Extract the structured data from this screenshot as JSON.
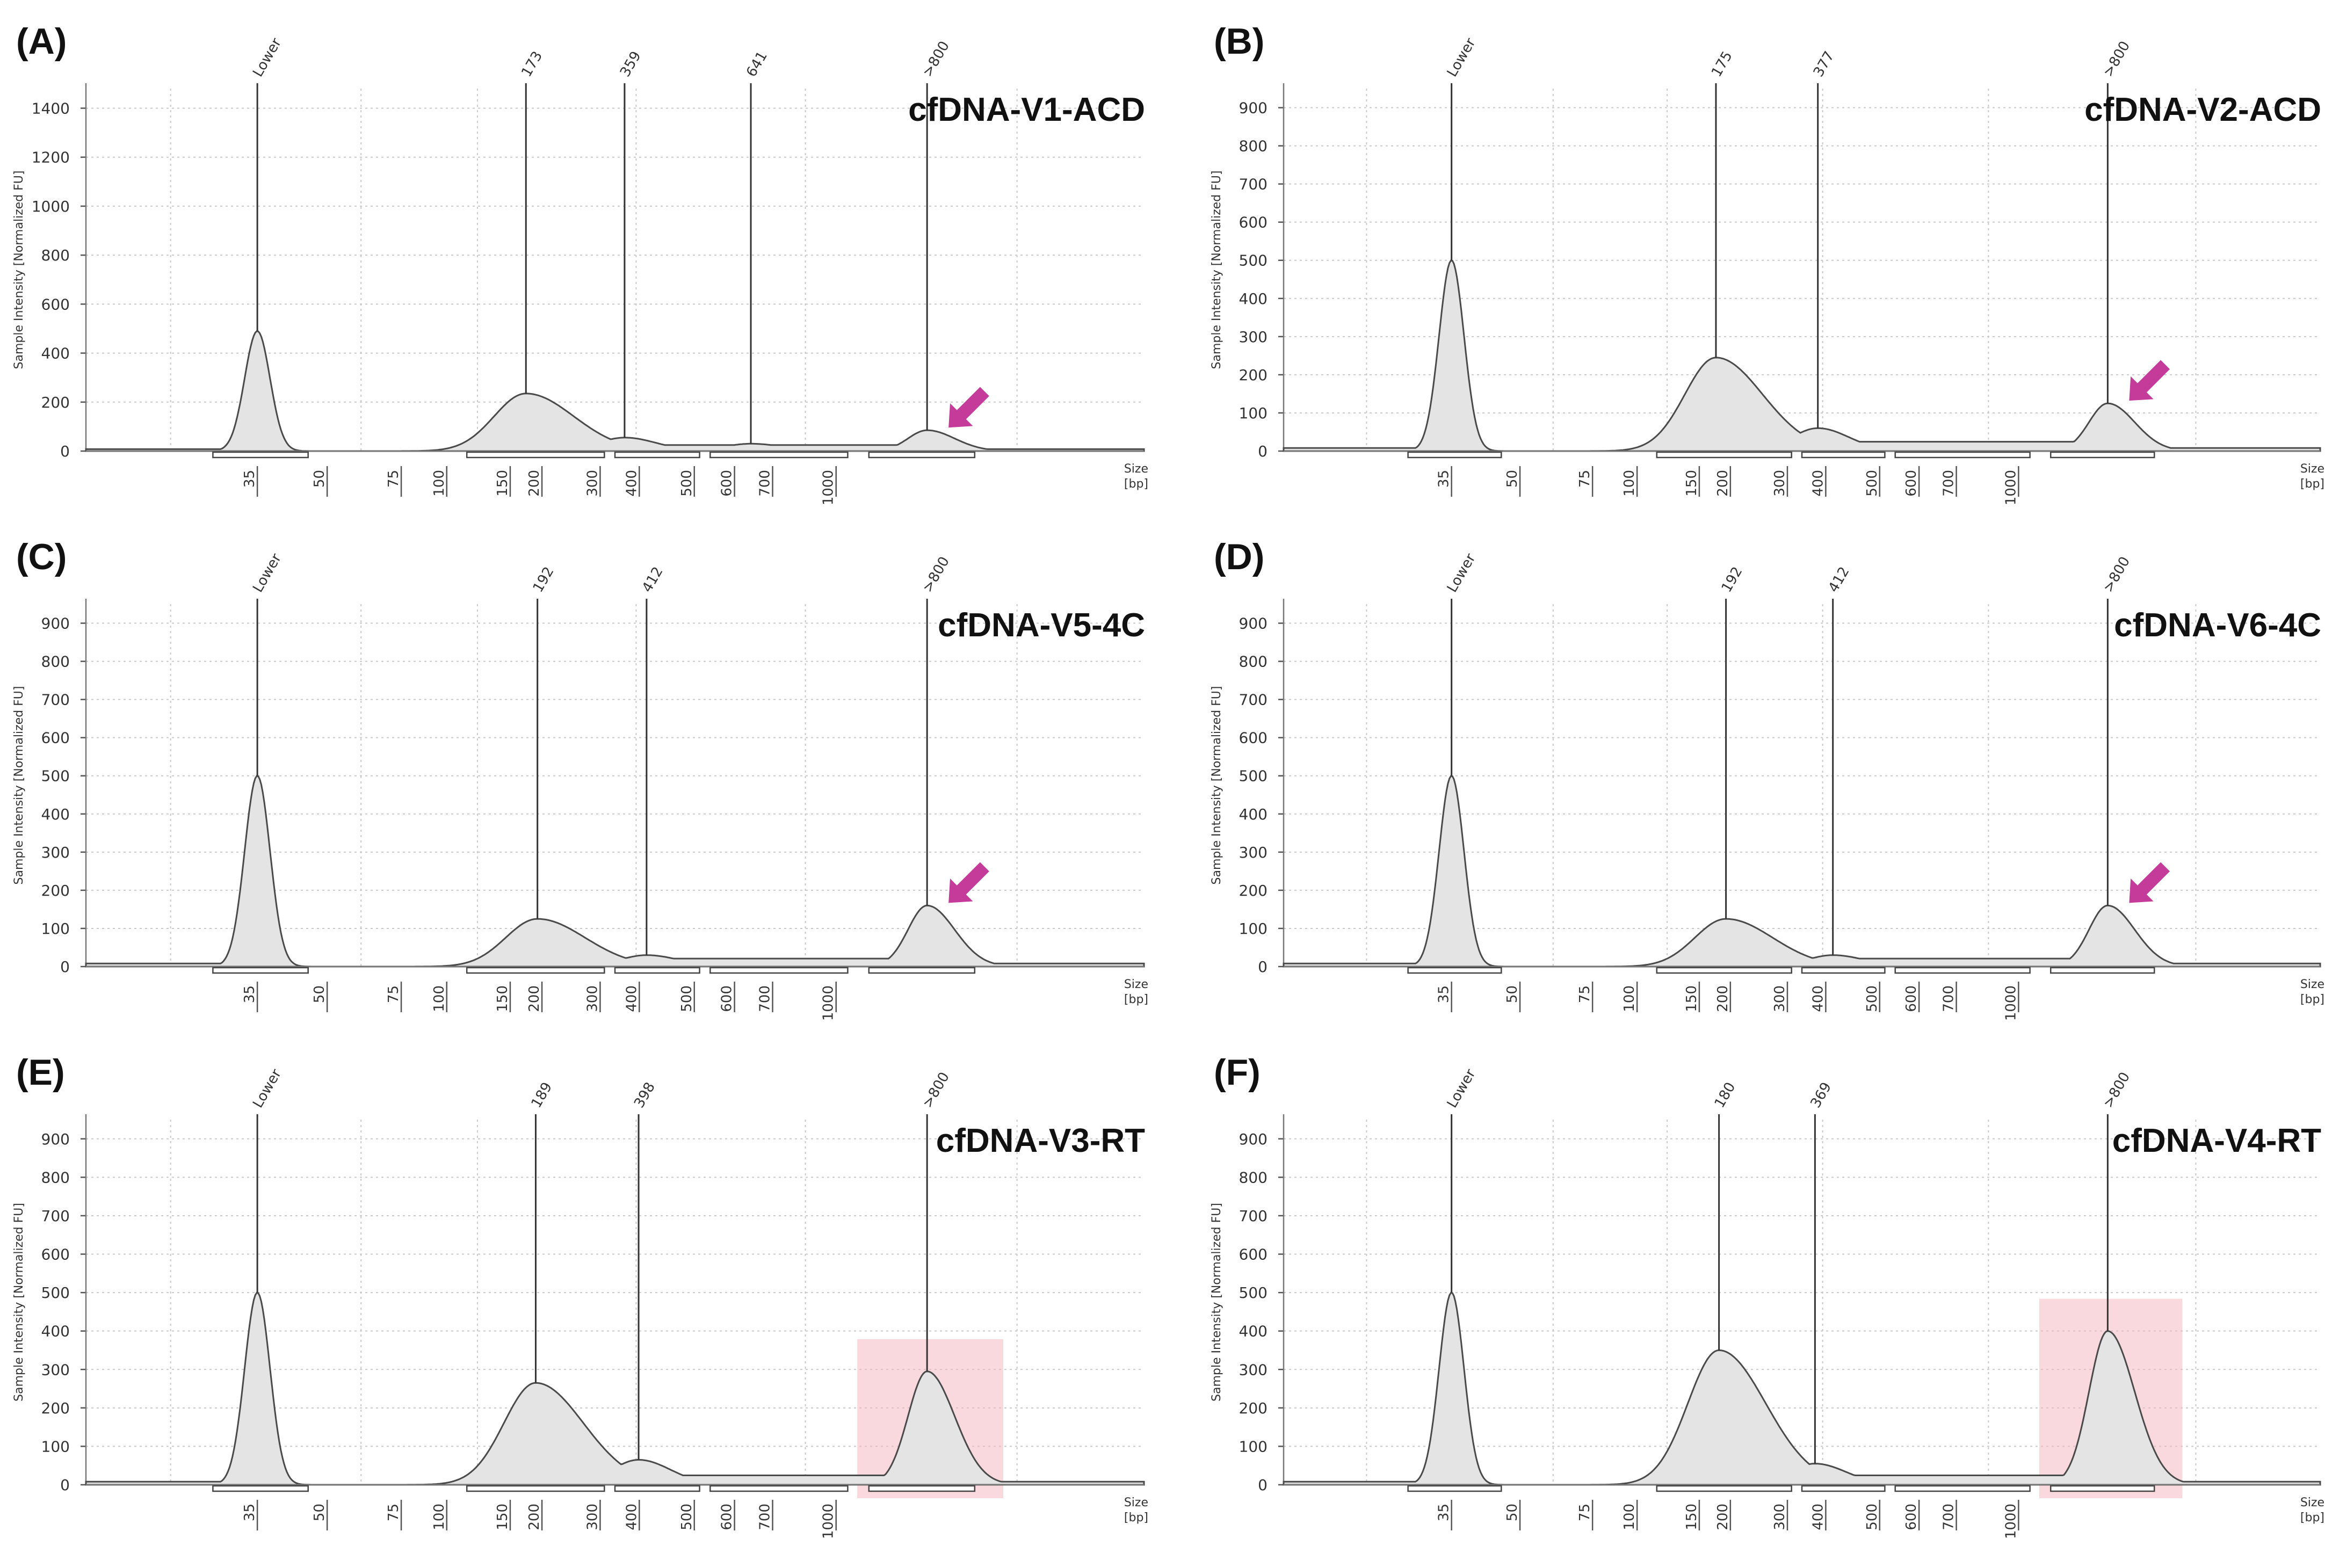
{
  "figure_label": "cfDNA electropherograms",
  "colors": {
    "trace_fill": "#e4e4e4",
    "trace_line": "#4a4a4a",
    "arrow": "#c43b9a",
    "highlight": "#f6b3bd"
  },
  "chart_data": [
    {
      "panel": "(A)",
      "title": "cfDNA-V1-ACD",
      "type": "area",
      "ylabel": "Sample Intensity [Normalized FU]",
      "xlabel": "Size\n[bp]",
      "ylim": [
        0,
        1480
      ],
      "yticks": [
        0,
        200,
        400,
        600,
        800,
        1000,
        1200,
        1400
      ],
      "xticks": [
        "35",
        "50",
        "75",
        "100",
        "150",
        "200",
        "300",
        "400",
        "500",
        "600",
        "700",
        "1000"
      ],
      "peaks": [
        {
          "label": "Lower",
          "size_bp": 35,
          "value": 490
        },
        {
          "label": "173",
          "size_bp": 173,
          "value": 235
        },
        {
          "label": "359",
          "size_bp": 359,
          "value": 55
        },
        {
          "label": "641",
          "size_bp": 641,
          "value": 30
        },
        {
          "label": ">800",
          "size_bp": 1500,
          "value": 85
        }
      ],
      "annotation": "arrow",
      "highlight": false
    },
    {
      "panel": "(B)",
      "title": "cfDNA-V2-ACD",
      "type": "area",
      "ylabel": "Sample Intensity [Normalized FU]",
      "xlabel": "Size\n[bp]",
      "ylim": [
        0,
        950
      ],
      "yticks": [
        0,
        100,
        200,
        300,
        400,
        500,
        600,
        700,
        800,
        900
      ],
      "xticks": [
        "35",
        "50",
        "75",
        "100",
        "150",
        "200",
        "300",
        "400",
        "500",
        "600",
        "700",
        "1000"
      ],
      "peaks": [
        {
          "label": "Lower",
          "size_bp": 35,
          "value": 500
        },
        {
          "label": "175",
          "size_bp": 175,
          "value": 245
        },
        {
          "label": "377",
          "size_bp": 377,
          "value": 60
        },
        {
          "label": ">800",
          "size_bp": 1500,
          "value": 125
        }
      ],
      "annotation": "arrow",
      "highlight": false
    },
    {
      "panel": "(C)",
      "title": "cfDNA-V5-4C",
      "type": "area",
      "ylabel": "Sample Intensity [Normalized FU]",
      "xlabel": "Size\n[bp]",
      "ylim": [
        0,
        950
      ],
      "yticks": [
        0,
        100,
        200,
        300,
        400,
        500,
        600,
        700,
        800,
        900
      ],
      "xticks": [
        "35",
        "50",
        "75",
        "100",
        "150",
        "200",
        "300",
        "400",
        "500",
        "600",
        "700",
        "1000"
      ],
      "peaks": [
        {
          "label": "Lower",
          "size_bp": 35,
          "value": 500
        },
        {
          "label": "192",
          "size_bp": 192,
          "value": 125
        },
        {
          "label": "412",
          "size_bp": 412,
          "value": 30
        },
        {
          "label": ">800",
          "size_bp": 1500,
          "value": 160
        }
      ],
      "annotation": "arrow",
      "highlight": false
    },
    {
      "panel": "(D)",
      "title": "cfDNA-V6-4C",
      "type": "area",
      "ylabel": "Sample Intensity [Normalized FU]",
      "xlabel": "Size\n[bp]",
      "ylim": [
        0,
        950
      ],
      "yticks": [
        0,
        100,
        200,
        300,
        400,
        500,
        600,
        700,
        800,
        900
      ],
      "xticks": [
        "35",
        "50",
        "75",
        "100",
        "150",
        "200",
        "300",
        "400",
        "500",
        "600",
        "700",
        "1000"
      ],
      "peaks": [
        {
          "label": "Lower",
          "size_bp": 35,
          "value": 500
        },
        {
          "label": "192",
          "size_bp": 192,
          "value": 125
        },
        {
          "label": "412",
          "size_bp": 412,
          "value": 30
        },
        {
          "label": ">800",
          "size_bp": 1500,
          "value": 160
        }
      ],
      "annotation": "arrow",
      "highlight": false
    },
    {
      "panel": "(E)",
      "title": "cfDNA-V3-RT",
      "type": "area",
      "ylabel": "Sample Intensity [Normalized FU]",
      "xlabel": "Size\n[bp]",
      "ylim": [
        0,
        950
      ],
      "yticks": [
        0,
        100,
        200,
        300,
        400,
        500,
        600,
        700,
        800,
        900
      ],
      "xticks": [
        "35",
        "50",
        "75",
        "100",
        "150",
        "200",
        "300",
        "400",
        "500",
        "600",
        "700",
        "1000"
      ],
      "peaks": [
        {
          "label": "Lower",
          "size_bp": 35,
          "value": 500
        },
        {
          "label": "189",
          "size_bp": 189,
          "value": 265
        },
        {
          "label": "398",
          "size_bp": 398,
          "value": 65
        },
        {
          "label": ">800",
          "size_bp": 1500,
          "value": 295
        }
      ],
      "annotation": "highlight",
      "highlight": true
    },
    {
      "panel": "(F)",
      "title": "cfDNA-V4-RT",
      "type": "area",
      "ylabel": "Sample Intensity [Normalized FU]",
      "xlabel": "Size\n[bp]",
      "ylim": [
        0,
        950
      ],
      "yticks": [
        0,
        100,
        200,
        300,
        400,
        500,
        600,
        700,
        800,
        900
      ],
      "xticks": [
        "35",
        "50",
        "75",
        "100",
        "150",
        "200",
        "300",
        "400",
        "500",
        "600",
        "700",
        "1000"
      ],
      "peaks": [
        {
          "label": "Lower",
          "size_bp": 35,
          "value": 500
        },
        {
          "label": "180",
          "size_bp": 180,
          "value": 350
        },
        {
          "label": "369",
          "size_bp": 369,
          "value": 55
        },
        {
          "label": ">800",
          "size_bp": 1500,
          "value": 400
        }
      ],
      "annotation": "highlight",
      "highlight": true
    }
  ]
}
